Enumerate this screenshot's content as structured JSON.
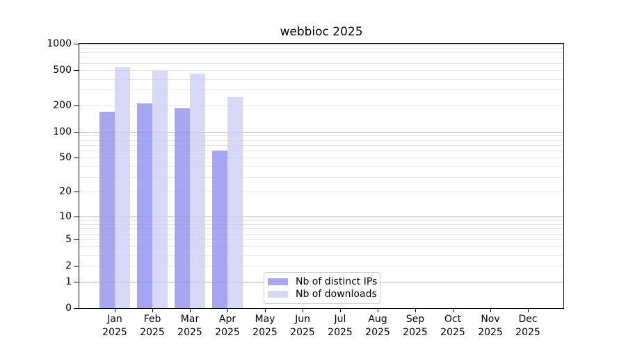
{
  "title": "webbioc 2025",
  "chart_data": {
    "type": "bar",
    "title": "webbioc 2025",
    "x_categories": [
      "Jan",
      "Feb",
      "Mar",
      "Apr",
      "May",
      "Jun",
      "Jul",
      "Aug",
      "Sep",
      "Oct",
      "Nov",
      "Dec"
    ],
    "x_sublabel": "2025",
    "series": [
      {
        "name": "Nb of distinct IPs",
        "color": "rgba(144,144,239,0.8)",
        "legend_color": "#a6a6f2",
        "values": [
          170,
          210,
          185,
          60,
          null,
          null,
          null,
          null,
          null,
          null,
          null,
          null
        ]
      },
      {
        "name": "Nb of downloads",
        "color": "rgba(206,206,245,0.8)",
        "legend_color": "#d8d8f7",
        "values": [
          545,
          490,
          455,
          248,
          null,
          null,
          null,
          null,
          null,
          null,
          null,
          null
        ]
      }
    ],
    "y_scale": "log10(1+x)",
    "ylim": [
      0,
      1020
    ],
    "y_ticks": [
      0,
      1,
      2,
      5,
      10,
      20,
      50,
      100,
      200,
      500,
      1000
    ],
    "y_major_gridlines": [
      1,
      10,
      100,
      1000
    ],
    "y_minor_gridlines": [
      2,
      3,
      4,
      5,
      6,
      7,
      8,
      9,
      20,
      30,
      40,
      50,
      60,
      70,
      80,
      90,
      200,
      300,
      400,
      500,
      600,
      700,
      800,
      900
    ],
    "grid": true,
    "legend_position": "bottom-center",
    "colors": {
      "grid_major": "#b0b0b0",
      "grid_minor": "#e7e7e7",
      "axis": "#000000",
      "text": "#000000",
      "background": "#ffffff"
    }
  }
}
